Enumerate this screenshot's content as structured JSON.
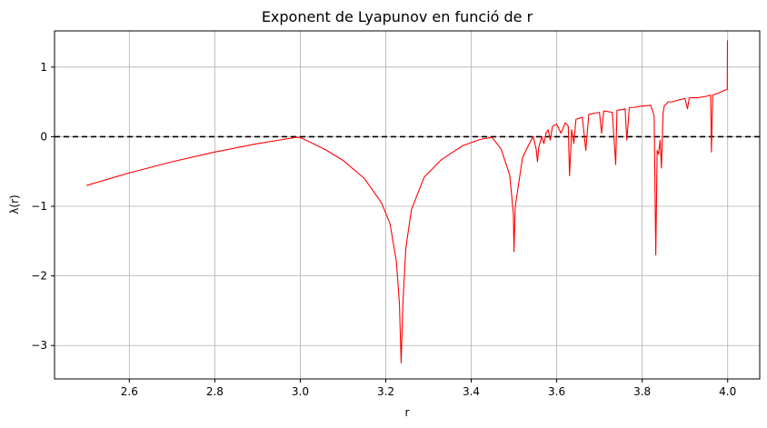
{
  "chart_data": {
    "type": "line",
    "title": "Exponent de Lyapunov en funció de r",
    "xlabel": "r",
    "ylabel": "λ(r)",
    "xlim": [
      2.425,
      4.075
    ],
    "ylim": [
      -3.48,
      1.52
    ],
    "xticks": [
      2.6,
      2.8,
      3.0,
      3.2,
      3.4,
      3.6,
      3.8,
      4.0
    ],
    "xtick_labels": [
      "2.6",
      "2.8",
      "3.0",
      "3.2",
      "3.4",
      "3.6",
      "3.8",
      "4.0"
    ],
    "yticks": [
      1,
      0,
      -1,
      -2,
      -3
    ],
    "ytick_labels": [
      "1",
      "0",
      "−1",
      "−2",
      "−3"
    ],
    "grid": true,
    "reference_line": {
      "y": 0,
      "style": "dashed",
      "color": "#000000"
    },
    "series": [
      {
        "color": "#ff0000",
        "x": [
          2.5,
          2.6,
          2.7,
          2.8,
          2.9,
          2.95,
          2.99,
          3.0,
          3.02,
          3.06,
          3.1,
          3.15,
          3.19,
          3.21,
          3.225,
          3.232,
          3.236,
          3.24,
          3.247,
          3.26,
          3.29,
          3.33,
          3.38,
          3.42,
          3.449,
          3.47,
          3.49,
          3.4985,
          3.5,
          3.503,
          3.52,
          3.54,
          3.545,
          3.552,
          3.555,
          3.558,
          3.565,
          3.57,
          3.575,
          3.58,
          3.585,
          3.59,
          3.6,
          3.61,
          3.62,
          3.627,
          3.63,
          3.635,
          3.64,
          3.645,
          3.66,
          3.668,
          3.675,
          3.7,
          3.705,
          3.71,
          3.73,
          3.738,
          3.741,
          3.745,
          3.76,
          3.764,
          3.77,
          3.78,
          3.8,
          3.82,
          3.828,
          3.8318,
          3.835,
          3.838,
          3.842,
          3.845,
          3.849,
          3.852,
          3.857,
          3.86,
          3.87,
          3.88,
          3.9,
          3.906,
          3.91,
          3.93,
          3.95,
          3.96,
          3.962,
          3.965,
          3.98,
          3.99,
          3.999,
          3.9995,
          4.0
        ],
        "values": [
          -0.7,
          -0.52,
          -0.36,
          -0.22,
          -0.1,
          -0.05,
          -0.01,
          -0.01,
          -0.07,
          -0.19,
          -0.34,
          -0.6,
          -0.95,
          -1.25,
          -1.8,
          -2.4,
          -3.25,
          -2.4,
          -1.6,
          -1.05,
          -0.58,
          -0.33,
          -0.13,
          -0.04,
          -0.01,
          -0.18,
          -0.55,
          -1.1,
          -1.65,
          -1.0,
          -0.3,
          -0.05,
          0.0,
          -0.18,
          -0.36,
          -0.15,
          0.0,
          -0.1,
          0.05,
          0.1,
          -0.05,
          0.15,
          0.18,
          0.05,
          0.2,
          0.15,
          -0.56,
          0.1,
          -0.1,
          0.25,
          0.28,
          -0.2,
          0.32,
          0.35,
          0.05,
          0.37,
          0.35,
          -0.4,
          0.38,
          0.38,
          0.4,
          -0.05,
          0.42,
          0.42,
          0.44,
          0.45,
          0.3,
          -1.7,
          -0.2,
          -0.25,
          -0.05,
          -0.45,
          0.35,
          0.45,
          0.47,
          0.5,
          0.5,
          0.52,
          0.55,
          0.4,
          0.56,
          0.56,
          0.58,
          0.6,
          -0.22,
          0.6,
          0.63,
          0.66,
          0.68,
          1.38,
          1.38
        ]
      }
    ]
  }
}
